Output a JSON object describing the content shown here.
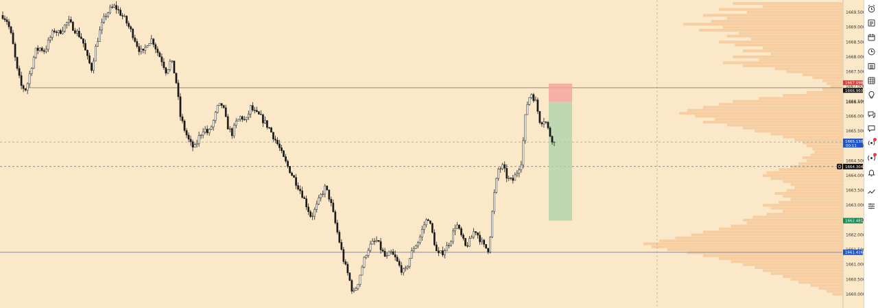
{
  "chart_data": {
    "type": "candlestick",
    "y_range": [
      1659.8,
      1670.0
    ],
    "ticks": [
      "1669.500",
      "1669.000",
      "1668.500",
      "1668.000",
      "1667.500",
      "1667.000",
      "1666.500",
      "1666.000",
      "1665.500",
      "1665.000",
      "1664.500",
      "1664.000",
      "1663.500",
      "1663.000",
      "1662.500",
      "1662.000",
      "1661.500",
      "1661.000",
      "1660.500",
      "1660.000"
    ],
    "levels": {
      "resistance": 1666.96,
      "support": 1661.416,
      "price": 1665.13,
      "crosshair": 1664.304
    },
    "tags": {
      "stop": "1667.098",
      "resistance": "1666.960",
      "entry": "1666.475",
      "price": "1665.130",
      "countdown": "00:11",
      "crosshair": "1664.304",
      "target": "1662.481",
      "support": "1661.416"
    },
    "position": {
      "type": "short",
      "entry": 1666.475,
      "stop": 1667.098,
      "target": 1662.481
    },
    "path": [
      1669.4,
      1669.2,
      1668.6,
      1667.6,
      1667.0,
      1666.9,
      1667.6,
      1668.2,
      1668.3,
      1668.2,
      1668.6,
      1668.9,
      1668.8,
      1669.0,
      1669.2,
      1669.0,
      1668.8,
      1668.6,
      1668.0,
      1667.6,
      1668.4,
      1669.0,
      1669.4,
      1669.6,
      1669.7,
      1669.5,
      1669.3,
      1669.0,
      1668.7,
      1668.3,
      1668.1,
      1668.5,
      1668.6,
      1668.2,
      1667.9,
      1667.5,
      1667.9,
      1667.3,
      1666.0,
      1665.5,
      1665.1,
      1664.9,
      1665.3,
      1665.6,
      1665.4,
      1665.8,
      1666.3,
      1666.4,
      1665.7,
      1665.4,
      1665.8,
      1666.0,
      1665.8,
      1666.3,
      1666.1,
      1666.0,
      1665.8,
      1665.6,
      1665.3,
      1665.0,
      1664.6,
      1664.3,
      1664.0,
      1663.7,
      1663.4,
      1663.0,
      1662.6,
      1662.9,
      1663.3,
      1663.6,
      1663.2,
      1662.5,
      1661.8,
      1661.1,
      1660.6,
      1660.0,
      1660.4,
      1661.0,
      1661.5,
      1661.7,
      1661.8,
      1661.5,
      1661.2,
      1661.4,
      1661.2,
      1660.9,
      1660.7,
      1661.2,
      1661.6,
      1661.8,
      1662.3,
      1662.6,
      1662.0,
      1661.3,
      1661.4,
      1661.6,
      1661.9,
      1662.4,
      1662.0,
      1661.6,
      1661.8,
      1662.2,
      1661.9,
      1661.6,
      1661.5,
      1663.2,
      1664.2,
      1664.3,
      1663.9,
      1663.8,
      1664.1,
      1664.5,
      1666.3,
      1666.8,
      1666.5,
      1665.8,
      1665.9,
      1665.4,
      1665.1
    ],
    "volume_profile": [
      [
        1669.8,
        0.55
      ],
      [
        1669.7,
        0.4
      ],
      [
        1669.6,
        0.62
      ],
      [
        1669.5,
        0.48
      ],
      [
        1669.4,
        0.7
      ],
      [
        1669.3,
        0.58
      ],
      [
        1669.2,
        0.66
      ],
      [
        1669.1,
        0.8
      ],
      [
        1669.0,
        0.6
      ],
      [
        1668.9,
        0.72
      ],
      [
        1668.8,
        0.52
      ],
      [
        1668.7,
        0.58
      ],
      [
        1668.6,
        0.46
      ],
      [
        1668.5,
        0.62
      ],
      [
        1668.4,
        0.54
      ],
      [
        1668.3,
        0.4
      ],
      [
        1668.2,
        0.5
      ],
      [
        1668.1,
        0.36
      ],
      [
        1668.0,
        0.55
      ],
      [
        1667.9,
        0.42
      ],
      [
        1667.8,
        0.6
      ],
      [
        1667.7,
        0.5
      ],
      [
        1667.6,
        0.34
      ],
      [
        1667.5,
        0.28
      ],
      [
        1667.4,
        0.2
      ],
      [
        1667.3,
        0.15
      ],
      [
        1667.2,
        0.1
      ],
      [
        1667.1,
        0.08
      ],
      [
        1667.0,
        0.06
      ],
      [
        1666.9,
        0.1
      ],
      [
        1666.8,
        0.18
      ],
      [
        1666.7,
        0.3
      ],
      [
        1666.6,
        0.42
      ],
      [
        1666.5,
        0.55
      ],
      [
        1666.4,
        0.62
      ],
      [
        1666.3,
        0.7
      ],
      [
        1666.2,
        0.78
      ],
      [
        1666.1,
        0.82
      ],
      [
        1666.0,
        0.74
      ],
      [
        1665.9,
        0.64
      ],
      [
        1665.8,
        0.7
      ],
      [
        1665.7,
        0.58
      ],
      [
        1665.6,
        0.5
      ],
      [
        1665.5,
        0.44
      ],
      [
        1665.4,
        0.36
      ],
      [
        1665.3,
        0.3
      ],
      [
        1665.2,
        0.24
      ],
      [
        1665.1,
        0.2
      ],
      [
        1665.0,
        0.18
      ],
      [
        1664.9,
        0.15
      ],
      [
        1664.8,
        0.14
      ],
      [
        1664.7,
        0.16
      ],
      [
        1664.6,
        0.2
      ],
      [
        1664.5,
        0.18
      ],
      [
        1664.4,
        0.22
      ],
      [
        1664.3,
        0.26
      ],
      [
        1664.2,
        0.32
      ],
      [
        1664.1,
        0.38
      ],
      [
        1664.0,
        0.4
      ],
      [
        1663.9,
        0.36
      ],
      [
        1663.8,
        0.3
      ],
      [
        1663.7,
        0.26
      ],
      [
        1663.6,
        0.24
      ],
      [
        1663.5,
        0.28
      ],
      [
        1663.4,
        0.34
      ],
      [
        1663.3,
        0.3
      ],
      [
        1663.2,
        0.26
      ],
      [
        1663.1,
        0.32
      ],
      [
        1663.0,
        0.4
      ],
      [
        1662.9,
        0.36
      ],
      [
        1662.8,
        0.3
      ],
      [
        1662.7,
        0.38
      ],
      [
        1662.6,
        0.45
      ],
      [
        1662.5,
        0.5
      ],
      [
        1662.4,
        0.48
      ],
      [
        1662.3,
        0.56
      ],
      [
        1662.2,
        0.62
      ],
      [
        1662.1,
        0.7
      ],
      [
        1662.0,
        0.76
      ],
      [
        1661.9,
        0.84
      ],
      [
        1661.8,
        0.92
      ],
      [
        1661.7,
        1.0
      ],
      [
        1661.6,
        0.96
      ],
      [
        1661.5,
        0.88
      ],
      [
        1661.4,
        0.78
      ],
      [
        1661.3,
        0.7
      ],
      [
        1661.2,
        0.62
      ],
      [
        1661.1,
        0.56
      ],
      [
        1661.0,
        0.5
      ],
      [
        1660.9,
        0.44
      ],
      [
        1660.8,
        0.4
      ],
      [
        1660.7,
        0.36
      ],
      [
        1660.6,
        0.3
      ],
      [
        1660.5,
        0.26
      ],
      [
        1660.4,
        0.22
      ],
      [
        1660.3,
        0.16
      ],
      [
        1660.2,
        0.12
      ],
      [
        1660.1,
        0.08
      ],
      [
        1660.0,
        0.05
      ]
    ]
  },
  "toolbar": {
    "items": [
      "alarm-clock-icon",
      "watchlist-icon",
      "calendar-icon",
      "clock-icon",
      "news-icon",
      "data-window-icon",
      "idea-icon",
      "chat-icon",
      "comment-icon",
      "broadcast-icon",
      "streams-icon",
      "bell-icon",
      "trend-icon",
      "settings-list-icon"
    ]
  },
  "colors": {
    "background": "#fbe8c9",
    "up_body": "#ffffff",
    "down_body": "#1b1b1b",
    "wick": "#1b1b1b",
    "resistance_line": "#9a8774",
    "support_line": "#6f89e8",
    "stop_zone": "#f5a7a0",
    "target_zone": "#a9d3a8",
    "profile": "#f5c99a",
    "tag_black": "#111111",
    "tag_red": "#e53935",
    "tag_blue": "#1e56c8",
    "tag_green": "#1b8a5a"
  }
}
